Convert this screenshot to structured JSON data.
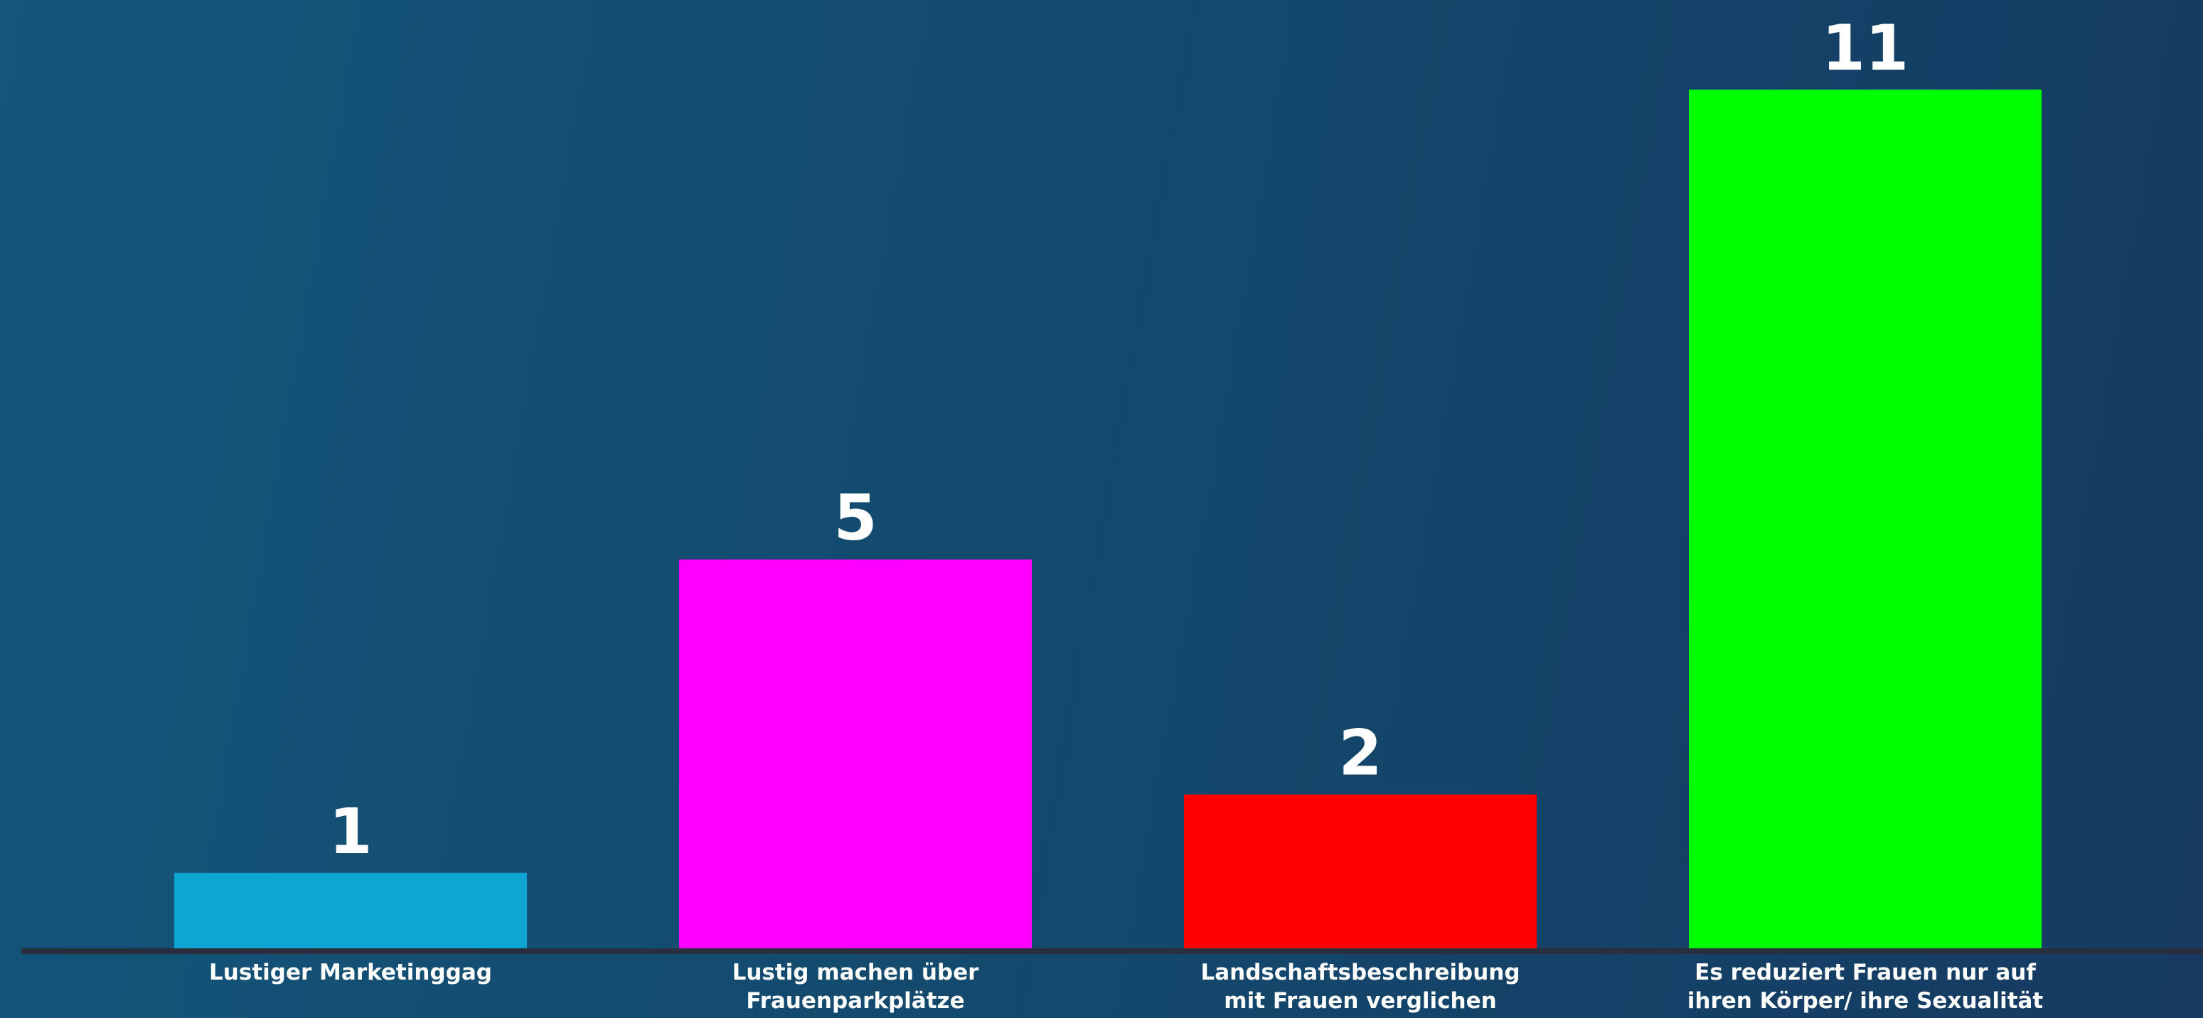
{
  "chart_data": {
    "type": "bar",
    "categories": [
      [
        "Lustiger Marketinggag"
      ],
      [
        "Lustig machen über",
        "Frauenparkplätze"
      ],
      [
        "Landschaftsbeschreibung",
        "mit Frauen verglichen"
      ],
      [
        "Es reduziert Frauen nur auf",
        "ihren Körper/ ihre Sexualität"
      ]
    ],
    "values": [
      1,
      5,
      2,
      11
    ],
    "value_labels": [
      "1",
      "5",
      "2",
      "11"
    ],
    "colors": [
      "#0ea5d2",
      "#ff00ff",
      "#ff0000",
      "#00ff00"
    ],
    "title": "",
    "xlabel": "",
    "ylabel": "",
    "ylim": [
      0,
      11
    ],
    "grid": false,
    "axis_color": "#2a2f3e"
  }
}
